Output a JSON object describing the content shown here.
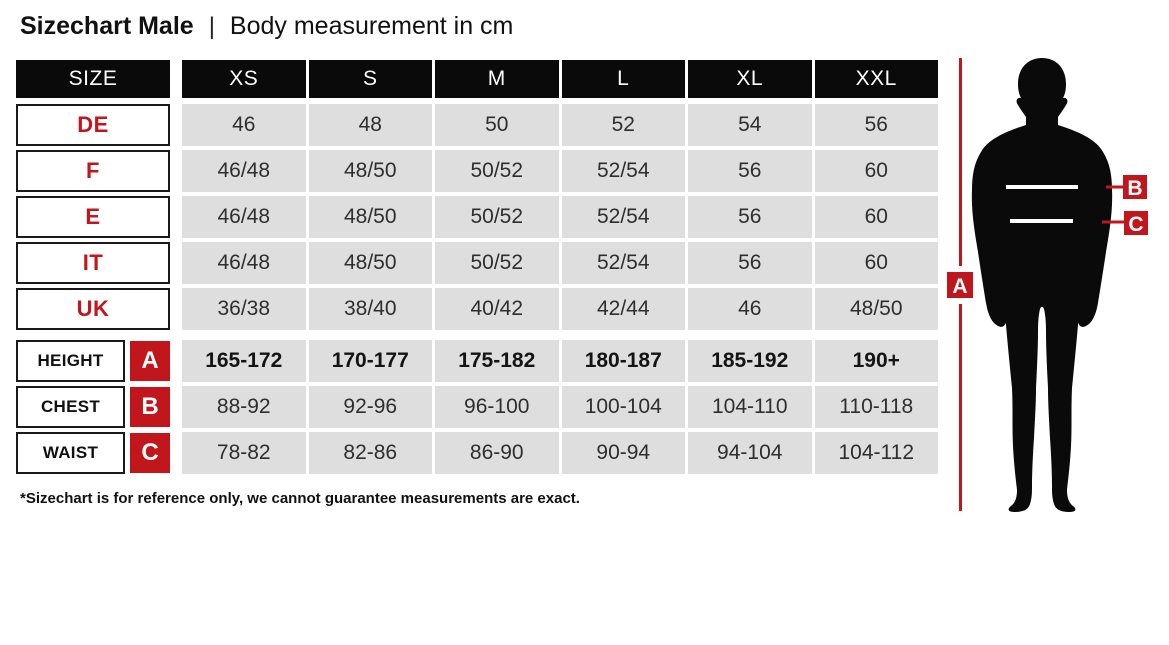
{
  "title": {
    "main": "Sizechart Male",
    "separator": "|",
    "subtitle": "Body measurement in cm"
  },
  "colors": {
    "accent_red": "#c1171c",
    "cell_gray": "#dedede",
    "header_black": "#0a0a0a",
    "value_text": "#2e2e2e"
  },
  "table": {
    "header": {
      "label": "SIZE",
      "columns": [
        "XS",
        "S",
        "M",
        "L",
        "XL",
        "XXL"
      ]
    },
    "size_rows": [
      {
        "label": "DE",
        "values": [
          "46",
          "48",
          "50",
          "52",
          "54",
          "56"
        ]
      },
      {
        "label": "F",
        "values": [
          "46/48",
          "48/50",
          "50/52",
          "52/54",
          "56",
          "60"
        ]
      },
      {
        "label": "E",
        "values": [
          "46/48",
          "48/50",
          "50/52",
          "52/54",
          "56",
          "60"
        ]
      },
      {
        "label": "IT",
        "values": [
          "46/48",
          "48/50",
          "50/52",
          "52/54",
          "56",
          "60"
        ]
      },
      {
        "label": "UK",
        "values": [
          "36/38",
          "38/40",
          "40/42",
          "42/44",
          "46",
          "48/50"
        ]
      }
    ],
    "measurement_rows": [
      {
        "label": "HEIGHT",
        "marker": "A",
        "bold": true,
        "values": [
          "165-172",
          "170-177",
          "175-182",
          "180-187",
          "185-192",
          "190+"
        ]
      },
      {
        "label": "CHEST",
        "marker": "B",
        "bold": false,
        "values": [
          "88-92",
          "92-96",
          "96-100",
          "100-104",
          "104-110",
          "110-118"
        ]
      },
      {
        "label": "WAIST",
        "marker": "C",
        "bold": false,
        "values": [
          "78-82",
          "82-86",
          "86-90",
          "90-94",
          "94-104",
          "104-112"
        ]
      }
    ]
  },
  "footnote": "*Sizechart is for reference only, we cannot guarantee measurements are exact.",
  "figure": {
    "markers": {
      "height": "A",
      "chest": "B",
      "waist": "C"
    }
  },
  "chart_data": {
    "type": "table",
    "title": "Sizechart Male | Body measurement in cm",
    "columns": [
      "SIZE",
      "XS",
      "S",
      "M",
      "L",
      "XL",
      "XXL"
    ],
    "rows": [
      [
        "DE",
        "46",
        "48",
        "50",
        "52",
        "54",
        "56"
      ],
      [
        "F",
        "46/48",
        "48/50",
        "50/52",
        "52/54",
        "56",
        "60"
      ],
      [
        "E",
        "46/48",
        "48/50",
        "50/52",
        "52/54",
        "56",
        "60"
      ],
      [
        "IT",
        "46/48",
        "48/50",
        "50/52",
        "52/54",
        "56",
        "60"
      ],
      [
        "UK",
        "36/38",
        "38/40",
        "40/42",
        "42/44",
        "46",
        "48/50"
      ],
      [
        "HEIGHT (A)",
        "165-172",
        "170-177",
        "175-182",
        "180-187",
        "185-192",
        "190+"
      ],
      [
        "CHEST (B)",
        "88-92",
        "92-96",
        "96-100",
        "100-104",
        "104-110",
        "110-118"
      ],
      [
        "WAIST (C)",
        "78-82",
        "82-86",
        "86-90",
        "90-94",
        "94-104",
        "104-112"
      ]
    ],
    "footnote": "*Sizechart is for reference only, we cannot guarantee measurements are exact."
  }
}
